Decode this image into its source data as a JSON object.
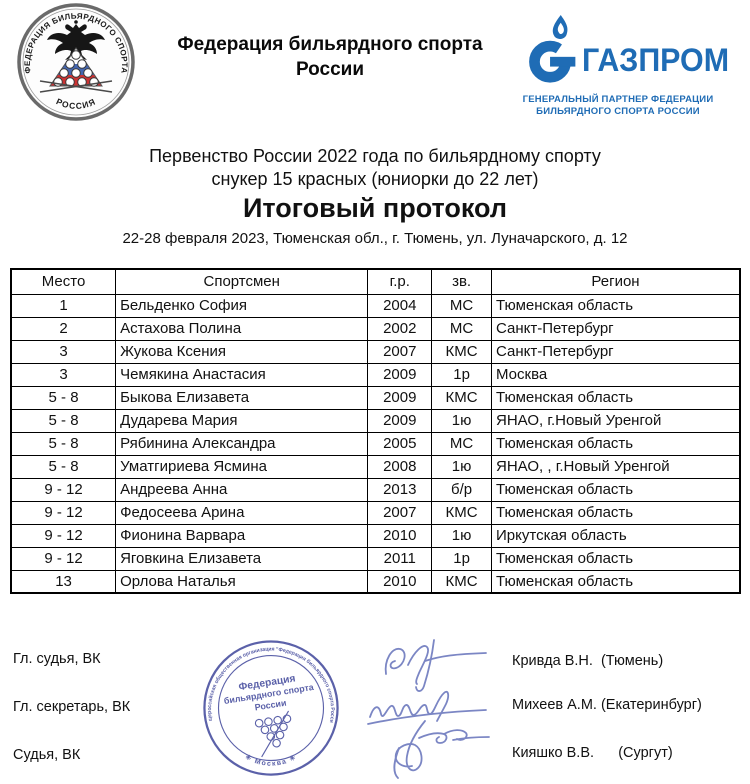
{
  "header": {
    "org_name_line1": "Федерация бильярдного спорта",
    "org_name_line2": "России",
    "emblem": {
      "top_arc": "ФЕДЕРАЦИЯ БИЛЬЯРДНОГО СПОРТА",
      "bottom_arc": "РОССИЯ"
    },
    "partner": {
      "logo_text": "ГАЗПРОМ",
      "tagline_line1": "ГЕНЕРАЛЬНЫЙ ПАРТНЕР ФЕДЕРАЦИИ",
      "tagline_line2": "БИЛЬЯРДНОГО СПОРТА РОССИИ"
    }
  },
  "title": {
    "line1": "Первенство России 2022 года по бильярдному спорту",
    "line2": "снукер 15 красных (юниорки до 22 лет)",
    "protocol": "Итоговый протокол",
    "venue": "22-28 февраля 2023, Тюменская обл., г. Тюмень, ул. Луначарского, д. 12"
  },
  "table": {
    "columns": [
      "Место",
      "Спортсмен",
      "г.р.",
      "зв.",
      "Регион"
    ],
    "rows": [
      [
        "1",
        "Бельденко София",
        "2004",
        "МС",
        "Тюменская область"
      ],
      [
        "2",
        "Астахова Полина",
        "2002",
        "МС",
        "Санкт-Петербург"
      ],
      [
        "3",
        "Жукова Ксения",
        "2007",
        "КМС",
        "Санкт-Петербург"
      ],
      [
        "3",
        "Чемякина Анастасия",
        "2009",
        "1р",
        "Москва"
      ],
      [
        "5 - 8",
        "Быкова Елизавета",
        "2009",
        "КМС",
        "Тюменская область"
      ],
      [
        "5 - 8",
        "Дударева Мария",
        "2009",
        "1ю",
        "ЯНАО, г.Новый Уренгой"
      ],
      [
        "5 - 8",
        "Рябинина Александра",
        "2005",
        "МС",
        "Тюменская область"
      ],
      [
        "5 - 8",
        "Уматгириева Ясмина",
        "2008",
        "1ю",
        "ЯНАО, , г.Новый Уренгой"
      ],
      [
        "9 - 12",
        "Андреева Анна",
        "2013",
        "б/р",
        "Тюменская область"
      ],
      [
        "9 - 12",
        "Федосеева Арина",
        "2007",
        "КМС",
        "Тюменская область"
      ],
      [
        "9 - 12",
        "Фионина Варвара",
        "2010",
        "1ю",
        "Иркутская область"
      ],
      [
        "9 - 12",
        "Яговкина Елизавета",
        "2011",
        "1р",
        "Тюменская область"
      ],
      [
        "13",
        "Орлова Наталья",
        "2010",
        "КМС",
        "Тюменская область"
      ]
    ]
  },
  "signatures": {
    "rows": [
      {
        "role": "Гл. судья, ВК",
        "name": "Кривда В.Н.  (Тюмень)"
      },
      {
        "role": "Гл. секретарь, ВК",
        "name": "Михеев А.М. (Екатеринбург)"
      },
      {
        "role": "Судья, ВК",
        "name": "Кияшко В.В.      (Сургут)"
      }
    ]
  },
  "stamp": {
    "ring_text": "Общероссийская общественная организация \"Федерация бильярдного спорта России\"",
    "bottom_text": "✳ Москва ✳",
    "center_line1": "Федерация",
    "center_line2": "бильярдного спорта",
    "center_line3": "России"
  },
  "colors": {
    "gazprom_blue": "#1f6cb5",
    "stamp_blue": "#5b61a9",
    "signature_blue": "#7b86c4",
    "flag_white": "#ffffff",
    "flag_blue": "#4466b0",
    "flag_red": "#cc3333"
  },
  "icons": {
    "left_logo": "federation-round-emblem",
    "right_logo": "gazprom-flame-icon",
    "bottom_center": "federation-round-stamp",
    "bottom_middle": "handwritten-signatures"
  }
}
